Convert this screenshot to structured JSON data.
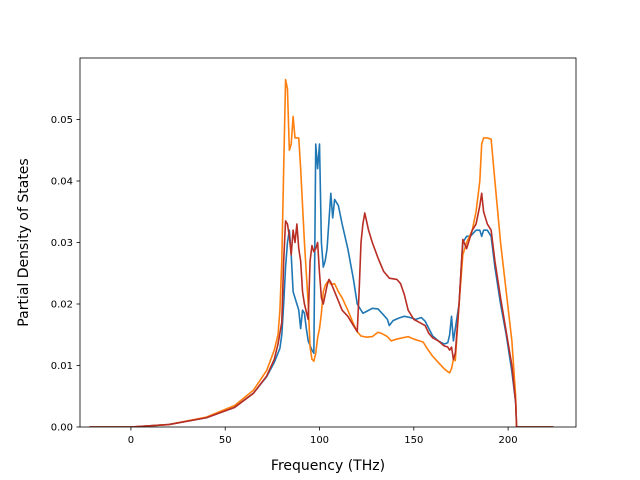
{
  "chart_data": {
    "type": "line",
    "title": "",
    "xlabel": "Frequency (THz)",
    "ylabel": "Partial Density of States",
    "xlim": [
      -27,
      236
    ],
    "ylim": [
      0.0,
      0.06
    ],
    "x_ticks": [
      0,
      50,
      100,
      150,
      200
    ],
    "y_ticks": [
      0.0,
      0.01,
      0.02,
      0.03,
      0.04,
      0.05
    ],
    "y_tick_labels": [
      "0.00",
      "0.01",
      "0.02",
      "0.03",
      "0.04",
      "0.05"
    ],
    "grid": false,
    "legend": "none",
    "series": [
      {
        "color": "#1f77b4",
        "points": [
          [
            -22,
            0
          ],
          [
            0,
            0
          ],
          [
            20,
            0.0004
          ],
          [
            40,
            0.0015
          ],
          [
            55,
            0.0032
          ],
          [
            65,
            0.0055
          ],
          [
            72,
            0.0082
          ],
          [
            76,
            0.0105
          ],
          [
            79,
            0.0128
          ],
          [
            80,
            0.015
          ],
          [
            81,
            0.02
          ],
          [
            82,
            0.026
          ],
          [
            83,
            0.03
          ],
          [
            84,
            0.032
          ],
          [
            85,
            0.028
          ],
          [
            86,
            0.022
          ],
          [
            87,
            0.021
          ],
          [
            88,
            0.02
          ],
          [
            89,
            0.019
          ],
          [
            90,
            0.016
          ],
          [
            91,
            0.019
          ],
          [
            92,
            0.0185
          ],
          [
            93,
            0.016
          ],
          [
            94,
            0.014
          ],
          [
            96,
            0.0125
          ],
          [
            97,
            0.012
          ],
          [
            98,
            0.046
          ],
          [
            99,
            0.042
          ],
          [
            100,
            0.046
          ],
          [
            101,
            0.03
          ],
          [
            102,
            0.026
          ],
          [
            103,
            0.027
          ],
          [
            104,
            0.029
          ],
          [
            106,
            0.038
          ],
          [
            107,
            0.034
          ],
          [
            108,
            0.037
          ],
          [
            110,
            0.036
          ],
          [
            112,
            0.033
          ],
          [
            115,
            0.029
          ],
          [
            118,
            0.024
          ],
          [
            120,
            0.02
          ],
          [
            123,
            0.0185
          ],
          [
            125,
            0.0188
          ],
          [
            128,
            0.0193
          ],
          [
            131,
            0.0192
          ],
          [
            134,
            0.0182
          ],
          [
            136,
            0.0175
          ],
          [
            137,
            0.0165
          ],
          [
            139,
            0.0173
          ],
          [
            142,
            0.0177
          ],
          [
            145,
            0.018
          ],
          [
            148,
            0.0178
          ],
          [
            151,
            0.0175
          ],
          [
            154,
            0.0178
          ],
          [
            156,
            0.0172
          ],
          [
            158,
            0.016
          ],
          [
            160,
            0.0148
          ],
          [
            163,
            0.014
          ],
          [
            166,
            0.0135
          ],
          [
            168,
            0.0137
          ],
          [
            169,
            0.015
          ],
          [
            170,
            0.018
          ],
          [
            171,
            0.014
          ],
          [
            172,
            0.016
          ],
          [
            174,
            0.02
          ],
          [
            176,
            0.03
          ],
          [
            178,
            0.031
          ],
          [
            180,
            0.031
          ],
          [
            183,
            0.032
          ],
          [
            185,
            0.032
          ],
          [
            186,
            0.031
          ],
          [
            187,
            0.032
          ],
          [
            189,
            0.032
          ],
          [
            191,
            0.031
          ],
          [
            193,
            0.026
          ],
          [
            196,
            0.02
          ],
          [
            199,
            0.015
          ],
          [
            202,
            0.009
          ],
          [
            204,
            0.004
          ],
          [
            204.5,
            0
          ],
          [
            215,
            0
          ],
          [
            224,
            0
          ]
        ]
      },
      {
        "color": "#ff7f0e",
        "points": [
          [
            -22,
            0
          ],
          [
            0,
            0
          ],
          [
            20,
            0.0004
          ],
          [
            40,
            0.0016
          ],
          [
            55,
            0.0035
          ],
          [
            65,
            0.006
          ],
          [
            72,
            0.0092
          ],
          [
            76,
            0.0125
          ],
          [
            78,
            0.015
          ],
          [
            79,
            0.019
          ],
          [
            80,
            0.027
          ],
          [
            81,
            0.042
          ],
          [
            82,
            0.0565
          ],
          [
            83,
            0.055
          ],
          [
            84,
            0.045
          ],
          [
            85,
            0.046
          ],
          [
            86,
            0.0505
          ],
          [
            87,
            0.047
          ],
          [
            88,
            0.047
          ],
          [
            89,
            0.047
          ],
          [
            90,
            0.042
          ],
          [
            91,
            0.036
          ],
          [
            92,
            0.03
          ],
          [
            93,
            0.025
          ],
          [
            94,
            0.02
          ],
          [
            95,
            0.013
          ],
          [
            96,
            0.011
          ],
          [
            97,
            0.0107
          ],
          [
            98,
            0.012
          ],
          [
            99,
            0.0145
          ],
          [
            100,
            0.016
          ],
          [
            101,
            0.0185
          ],
          [
            102,
            0.022
          ],
          [
            103,
            0.023
          ],
          [
            104,
            0.0235
          ],
          [
            105,
            0.0238
          ],
          [
            106,
            0.0232
          ],
          [
            108,
            0.0233
          ],
          [
            110,
            0.022
          ],
          [
            112,
            0.021
          ],
          [
            115,
            0.019
          ],
          [
            118,
            0.0168
          ],
          [
            120,
            0.0155
          ],
          [
            122,
            0.0148
          ],
          [
            125,
            0.0146
          ],
          [
            128,
            0.0147
          ],
          [
            131,
            0.0154
          ],
          [
            133,
            0.0152
          ],
          [
            136,
            0.0147
          ],
          [
            138,
            0.014
          ],
          [
            141,
            0.0143
          ],
          [
            144,
            0.0145
          ],
          [
            147,
            0.0147
          ],
          [
            150,
            0.0143
          ],
          [
            153,
            0.014
          ],
          [
            155,
            0.0138
          ],
          [
            157,
            0.0128
          ],
          [
            160,
            0.0115
          ],
          [
            163,
            0.0105
          ],
          [
            166,
            0.0095
          ],
          [
            168,
            0.009
          ],
          [
            169,
            0.0088
          ],
          [
            170,
            0.0095
          ],
          [
            171,
            0.011
          ],
          [
            172,
            0.0108
          ],
          [
            174,
            0.02
          ],
          [
            176,
            0.028
          ],
          [
            178,
            0.03
          ],
          [
            181,
            0.032
          ],
          [
            183,
            0.035
          ],
          [
            185,
            0.04
          ],
          [
            186,
            0.046
          ],
          [
            187,
            0.047
          ],
          [
            189,
            0.047
          ],
          [
            191,
            0.0468
          ],
          [
            193,
            0.04
          ],
          [
            196,
            0.03
          ],
          [
            199,
            0.022
          ],
          [
            202,
            0.014
          ],
          [
            204,
            0.005
          ],
          [
            204.5,
            0
          ],
          [
            215,
            0
          ],
          [
            224,
            0
          ]
        ]
      },
      {
        "color": "#b82d24",
        "points": [
          [
            -22,
            0
          ],
          [
            0,
            0
          ],
          [
            20,
            0.0004
          ],
          [
            40,
            0.0015
          ],
          [
            55,
            0.0032
          ],
          [
            65,
            0.0055
          ],
          [
            72,
            0.0083
          ],
          [
            76,
            0.011
          ],
          [
            78,
            0.0135
          ],
          [
            80,
            0.017
          ],
          [
            81,
            0.027
          ],
          [
            82,
            0.0335
          ],
          [
            83,
            0.033
          ],
          [
            84,
            0.031
          ],
          [
            85,
            0.028
          ],
          [
            86,
            0.032
          ],
          [
            87,
            0.03
          ],
          [
            88,
            0.033
          ],
          [
            89,
            0.029
          ],
          [
            90,
            0.027
          ],
          [
            91,
            0.022
          ],
          [
            92,
            0.02
          ],
          [
            94,
            0.0175
          ],
          [
            95,
            0.027
          ],
          [
            96,
            0.0295
          ],
          [
            97,
            0.0285
          ],
          [
            98,
            0.029
          ],
          [
            99,
            0.03
          ],
          [
            100,
            0.025
          ],
          [
            101,
            0.021
          ],
          [
            102,
            0.02
          ],
          [
            103,
            0.0215
          ],
          [
            104,
            0.023
          ],
          [
            105,
            0.024
          ],
          [
            106,
            0.0235
          ],
          [
            108,
            0.022
          ],
          [
            110,
            0.0205
          ],
          [
            112,
            0.019
          ],
          [
            115,
            0.018
          ],
          [
            118,
            0.0165
          ],
          [
            120,
            0.0155
          ],
          [
            121,
            0.022
          ],
          [
            122,
            0.03
          ],
          [
            123,
            0.033
          ],
          [
            124,
            0.0348
          ],
          [
            126,
            0.032
          ],
          [
            128,
            0.03
          ],
          [
            131,
            0.0275
          ],
          [
            134,
            0.0253
          ],
          [
            137,
            0.0242
          ],
          [
            141,
            0.024
          ],
          [
            143,
            0.0233
          ],
          [
            145,
            0.0215
          ],
          [
            147,
            0.019
          ],
          [
            150,
            0.0175
          ],
          [
            153,
            0.017
          ],
          [
            156,
            0.0165
          ],
          [
            158,
            0.0152
          ],
          [
            160,
            0.0145
          ],
          [
            163,
            0.014
          ],
          [
            166,
            0.0132
          ],
          [
            168,
            0.013
          ],
          [
            169,
            0.0125
          ],
          [
            170,
            0.013
          ],
          [
            171,
            0.011
          ],
          [
            172,
            0.012
          ],
          [
            174,
            0.02
          ],
          [
            176,
            0.0305
          ],
          [
            178,
            0.029
          ],
          [
            181,
            0.032
          ],
          [
            183,
            0.033
          ],
          [
            185,
            0.036
          ],
          [
            186,
            0.038
          ],
          [
            187,
            0.035
          ],
          [
            189,
            0.033
          ],
          [
            191,
            0.032
          ],
          [
            193,
            0.027
          ],
          [
            196,
            0.021
          ],
          [
            199,
            0.0155
          ],
          [
            202,
            0.01
          ],
          [
            204,
            0.004
          ],
          [
            204.5,
            0
          ],
          [
            215,
            0
          ],
          [
            224,
            0
          ]
        ]
      }
    ]
  }
}
